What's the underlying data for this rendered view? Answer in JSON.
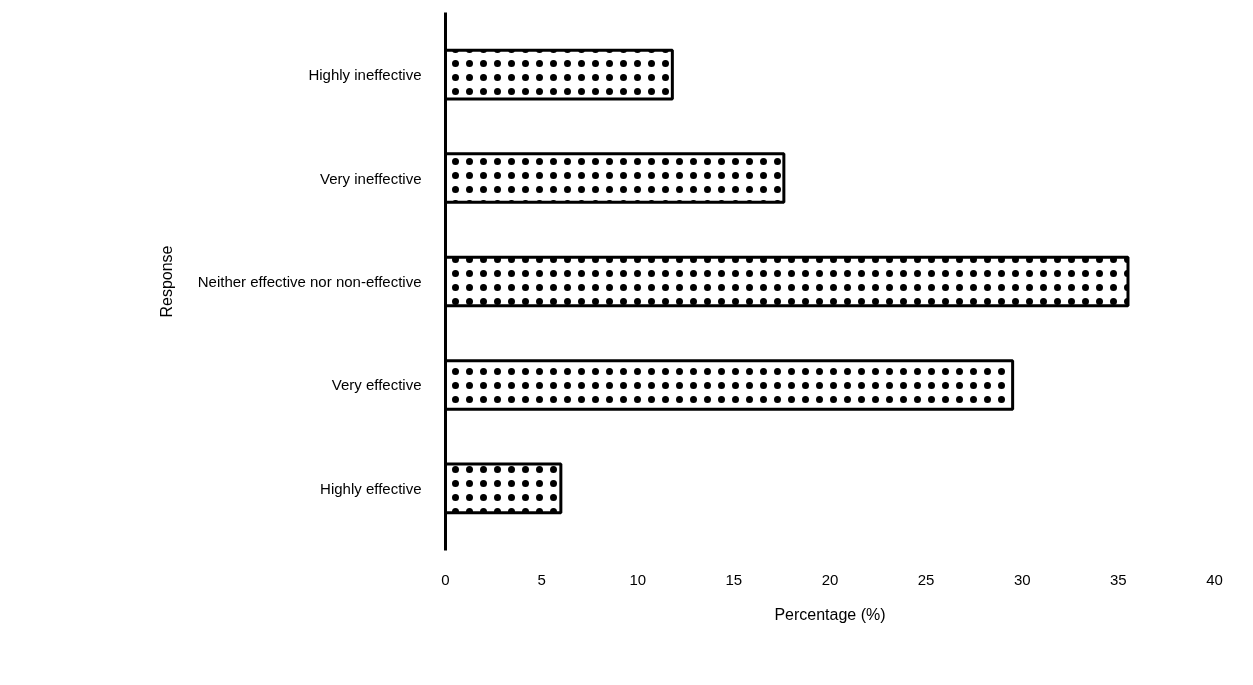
{
  "chart_data": {
    "type": "bar",
    "orientation": "horizontal",
    "xlabel": "Percentage (%)",
    "ylabel": "Response",
    "categories": [
      "Highly ineffective",
      "Very ineffective",
      "Neither effective nor non-effective",
      "Very effective",
      "Highly effective"
    ],
    "values": [
      11.8,
      17.6,
      35.5,
      29.5,
      6.0
    ],
    "color": "#ffffff",
    "xlim": [
      0,
      40
    ],
    "xticks": [
      0,
      5,
      10,
      15,
      20,
      25,
      30,
      35,
      40
    ],
    "grid": false
  }
}
